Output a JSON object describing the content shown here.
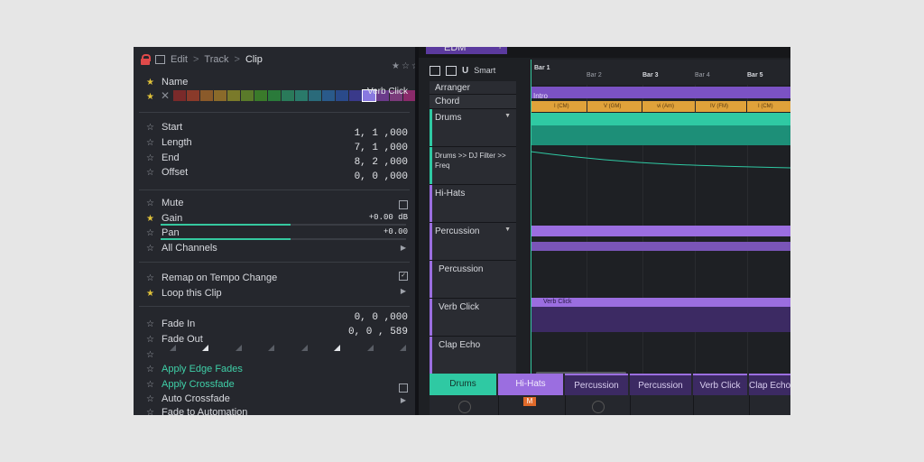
{
  "inspector": {
    "breadcrumb": {
      "edit": "Edit",
      "sep": ">",
      "track": "Track",
      "clip": "Clip"
    },
    "name_label": "Name",
    "name_value": "Verb Click",
    "swatch_colors": [
      "#7a2a2a",
      "#8a3a2a",
      "#8a5a2a",
      "#8a6a2a",
      "#7a7a2a",
      "#5a7a2a",
      "#3a7a2a",
      "#2a7a3a",
      "#2a7a5a",
      "#2a7a6a",
      "#2a6a7a",
      "#2a5a8a",
      "#2a4a8a",
      "#3a3a8a",
      "#8878e0",
      "#6a3a8a",
      "#7a3a7a",
      "#8a2a6a",
      "#8a2a4a"
    ],
    "start": {
      "label": "Start",
      "value": "1, 1 ,000"
    },
    "length": {
      "label": "Length",
      "value": "7, 1 ,000"
    },
    "end": {
      "label": "End",
      "value": "8, 2 ,000"
    },
    "offset": {
      "label": "Offset",
      "value": "0, 0 ,000"
    },
    "mute": {
      "label": "Mute"
    },
    "gain": {
      "label": "Gain",
      "value": "+0.00 dB",
      "level": 0.53
    },
    "pan": {
      "label": "Pan",
      "value": "+0.00",
      "level": 0.53
    },
    "all_channels": {
      "label": "All Channels"
    },
    "remap": {
      "label": "Remap on Tempo Change"
    },
    "loop": {
      "label": "Loop this Clip"
    },
    "fade_in": {
      "label": "Fade In",
      "value": "0, 0 ,000"
    },
    "fade_out": {
      "label": "Fade Out",
      "value": "0, 0 , 589"
    },
    "apply_edge_fades": "Apply Edge Fades",
    "apply_crossfade": "Apply Crossfade",
    "auto_crossfade": "Auto Crossfade",
    "fade_to_automation": "Fade to Automation"
  },
  "arranger": {
    "tab": "EDM",
    "toolbar_smart": "Smart",
    "ruler": [
      "Bar 1",
      "Bar 2",
      "Bar 3",
      "Bar 4",
      "Bar 5"
    ],
    "arranger_label": "Arranger",
    "chord_label": "Chord",
    "intro_label": "Intro",
    "chords": [
      "I (CM)",
      "V (GM)",
      "vi (Am)",
      "IV (FM)",
      "I (CM)"
    ],
    "tracks": {
      "drums": "Drums",
      "drums_auto": "Drums >> DJ Filter >> Freq",
      "hihats": "Hi-Hats",
      "percussion_group": "Percussion",
      "percussion": "Percussion",
      "verb_click": "Verb Click",
      "clap_echo": "Clap Echo"
    },
    "verb_clip_label": "Verb Click"
  },
  "mixer": {
    "tabs": [
      "Drums",
      "Hi-Hats",
      "Percussion",
      "Percussion",
      "Verb Click",
      "Clap Echo"
    ],
    "mute_badge": "M"
  },
  "colors": {
    "teal": "#2fc9a3",
    "purple": "#9b6ee0",
    "orange": "#e0a23a"
  }
}
